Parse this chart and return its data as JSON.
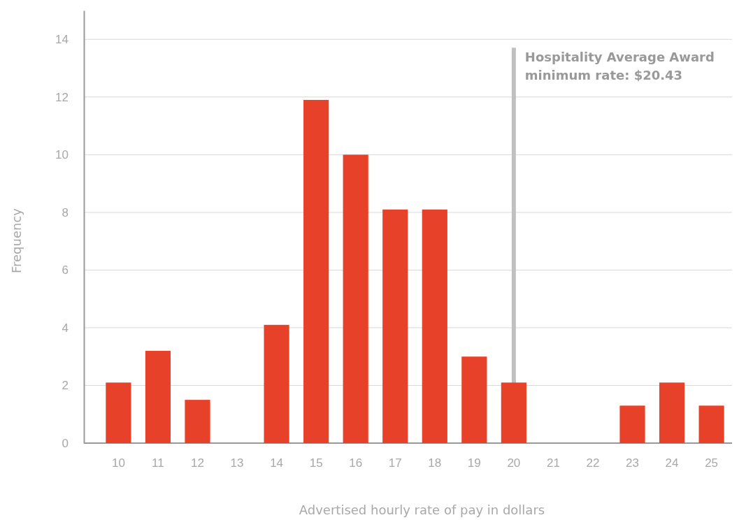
{
  "chart_data": {
    "type": "bar",
    "xlabel": "Advertised hourly rate of pay in dollars",
    "ylabel": "Frequency",
    "categories": [
      "10",
      "11",
      "12",
      "13",
      "14",
      "15",
      "16",
      "17",
      "18",
      "19",
      "20",
      "21",
      "22",
      "23",
      "24",
      "25"
    ],
    "values": [
      2.1,
      3.2,
      1.5,
      null,
      4.1,
      11.9,
      10,
      8.1,
      8.1,
      3,
      2.1,
      null,
      null,
      1.3,
      2.1,
      1.3
    ],
    "color": "#e8412a",
    "ylim": [
      0,
      15
    ],
    "yticks": [
      0,
      2,
      4,
      6,
      8,
      10,
      12,
      14
    ],
    "grid": "y",
    "ref_lines": [
      {
        "axis": "x",
        "value": "20",
        "label": "Hospitality Average Award minimum rate: $20.43",
        "color": "#c0c0c0"
      }
    ]
  }
}
